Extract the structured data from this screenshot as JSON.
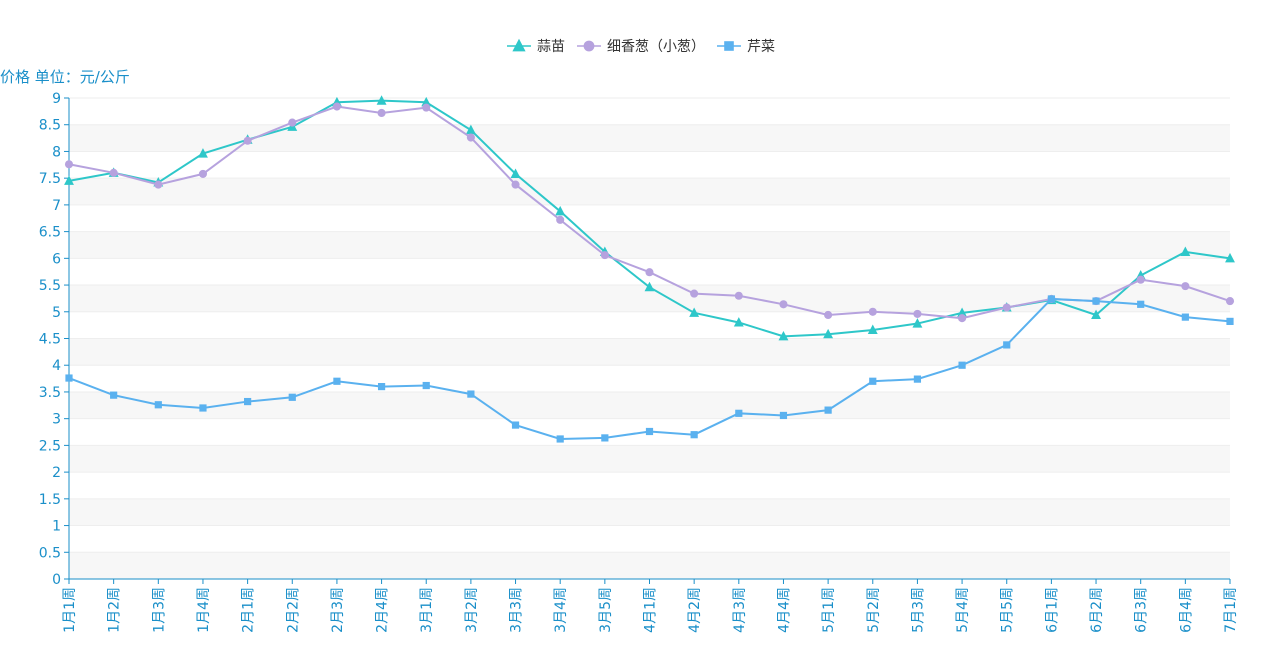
{
  "chart_data": {
    "type": "line",
    "ylabel": "价格 单位：元/公斤",
    "ylim": [
      0,
      9
    ],
    "yticks": [
      0,
      0.5,
      1,
      1.5,
      2,
      2.5,
      3,
      3.5,
      4,
      4.5,
      5,
      5.5,
      6,
      6.5,
      7,
      7.5,
      8,
      8.5,
      9
    ],
    "yticklabels": [
      "0",
      "0.5",
      "1",
      "1.5",
      "2",
      "2.5",
      "3",
      "3.5",
      "4",
      "4.5",
      "5",
      "5.5",
      "6",
      "6.5",
      "7",
      "7.5",
      "8",
      "8.5",
      "9"
    ],
    "legend_position": "top-center",
    "grid": true,
    "categories": [
      "1月1周",
      "1月2周",
      "1月3周",
      "1月4周",
      "2月1周",
      "2月2周",
      "2月3周",
      "2月4周",
      "3月1周",
      "3月2周",
      "3月3周",
      "3月4周",
      "3月5周",
      "4月1周",
      "4月2周",
      "4月3周",
      "4月4周",
      "5月1周",
      "5月2周",
      "5月3周",
      "5月4周",
      "5月5周",
      "6月1周",
      "6月2周",
      "6月3周",
      "6月4周",
      "7月1周"
    ],
    "series": [
      {
        "name": "蒜苗",
        "color": "#2ec7c9",
        "marker": "triangle",
        "values": [
          7.45,
          7.6,
          7.42,
          7.96,
          8.22,
          8.46,
          8.92,
          8.95,
          8.92,
          8.4,
          7.58,
          6.88,
          6.12,
          5.46,
          4.98,
          4.8,
          4.54,
          4.58,
          4.66,
          4.78,
          4.98,
          5.08,
          5.22,
          4.94,
          5.68,
          6.12,
          6.0
        ]
      },
      {
        "name": "细香葱（小葱）",
        "color": "#b6a2de",
        "marker": "circle",
        "values": [
          7.76,
          7.6,
          7.38,
          7.58,
          8.2,
          8.54,
          8.84,
          8.72,
          8.82,
          8.26,
          7.38,
          6.72,
          6.06,
          5.74,
          5.34,
          5.3,
          5.14,
          4.94,
          5.0,
          4.96,
          4.88,
          5.08,
          5.24,
          5.2,
          5.6,
          5.48,
          5.2
        ]
      },
      {
        "name": "芹菜",
        "color": "#5ab1ef",
        "marker": "square",
        "values": [
          3.76,
          3.44,
          3.26,
          3.2,
          3.32,
          3.4,
          3.7,
          3.6,
          3.62,
          3.46,
          2.88,
          2.62,
          2.64,
          2.76,
          2.7,
          3.1,
          3.06,
          3.16,
          3.7,
          3.74,
          4.0,
          4.38,
          5.24,
          5.2,
          5.14,
          4.9,
          4.82
        ]
      }
    ]
  }
}
